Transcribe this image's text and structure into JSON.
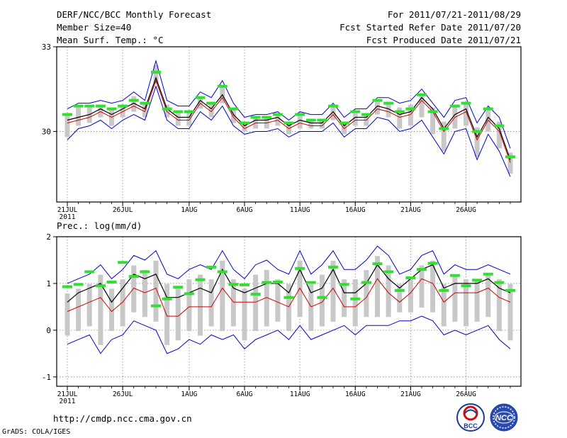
{
  "header": {
    "title": "DERF/NCC/BCC Monthly Forecast",
    "member_size": "Member Size=40",
    "variable": "Mean Surf. Temp.: °C",
    "period": "For 2011/07/21-2011/08/29",
    "refer_date": "Fcst Started Refer Date 2011/07/20",
    "produced_date": "Fcst Produced Date 2011/07/21"
  },
  "footer": {
    "url": "http://cmdp.ncc.cma.gov.cn",
    "grads": "GrADS: COLA/IGES",
    "logo_left_text": "BCC",
    "logo_right_text": "NCC"
  },
  "colors": {
    "mean": "#000000",
    "median": "#cc0000",
    "bounds": "#0000cc",
    "marker": "#33dd33",
    "spread": "#c8c8c8"
  },
  "chart_data": [
    {
      "type": "line",
      "title": "Mean Surf. Temp.: °C",
      "ylabel": "°C",
      "ylim": [
        27.5,
        33
      ],
      "yticks": [
        30,
        33
      ],
      "year_label": "2011",
      "x_tick_labels": [
        "21JUL",
        "26JUL",
        "1AUG",
        "6AUG",
        "11AUG",
        "16AUG",
        "21AUG",
        "26AUG"
      ],
      "x_tick_days": [
        0,
        5,
        11,
        16,
        21,
        26,
        31,
        36
      ],
      "days": 40,
      "series": [
        {
          "name": "upper",
          "values": [
            30.8,
            31.0,
            31.0,
            31.1,
            31.0,
            31.1,
            31.4,
            31.1,
            32.5,
            31.1,
            30.9,
            30.9,
            31.4,
            31.2,
            31.8,
            31.0,
            30.5,
            30.6,
            30.6,
            30.7,
            30.4,
            30.7,
            30.6,
            30.6,
            31.0,
            30.5,
            30.8,
            30.8,
            31.2,
            31.2,
            31.0,
            31.1,
            31.5,
            31.0,
            30.5,
            31.1,
            31.2,
            30.3,
            30.9,
            30.5,
            29.4
          ]
        },
        {
          "name": "mean",
          "values": [
            30.4,
            30.5,
            30.6,
            30.8,
            30.6,
            30.8,
            31.0,
            30.8,
            31.9,
            30.8,
            30.5,
            30.5,
            31.1,
            30.8,
            31.3,
            30.6,
            30.2,
            30.4,
            30.4,
            30.5,
            30.2,
            30.4,
            30.3,
            30.3,
            30.7,
            30.2,
            30.5,
            30.5,
            30.9,
            30.8,
            30.6,
            30.7,
            31.2,
            30.8,
            30.1,
            30.6,
            30.8,
            29.8,
            30.5,
            30.1,
            29.0
          ]
        },
        {
          "name": "median",
          "values": [
            30.3,
            30.4,
            30.5,
            30.7,
            30.5,
            30.7,
            30.9,
            30.7,
            31.8,
            30.7,
            30.4,
            30.4,
            31.0,
            30.7,
            31.2,
            30.5,
            30.1,
            30.3,
            30.3,
            30.4,
            30.1,
            30.3,
            30.2,
            30.2,
            30.6,
            30.1,
            30.4,
            30.4,
            30.8,
            30.7,
            30.5,
            30.6,
            31.1,
            30.7,
            30.0,
            30.5,
            30.7,
            29.7,
            30.4,
            30.0,
            28.9
          ]
        },
        {
          "name": "lower",
          "values": [
            29.7,
            30.1,
            30.2,
            30.4,
            30.1,
            30.4,
            30.6,
            30.4,
            31.6,
            30.4,
            30.1,
            30.1,
            30.7,
            30.4,
            30.9,
            30.2,
            29.9,
            30.0,
            30.0,
            30.1,
            29.8,
            30.0,
            30.0,
            30.0,
            30.3,
            29.8,
            30.1,
            30.1,
            30.5,
            30.4,
            30.0,
            30.1,
            30.4,
            29.8,
            29.2,
            30.0,
            30.1,
            29.0,
            29.9,
            29.3,
            28.4
          ]
        },
        {
          "name": "marker",
          "values": [
            30.6,
            30.9,
            30.9,
            30.9,
            30.8,
            30.9,
            31.1,
            31.0,
            32.1,
            30.8,
            30.7,
            30.7,
            31.2,
            31.0,
            31.6,
            30.8,
            30.3,
            30.5,
            30.5,
            30.6,
            30.3,
            30.6,
            30.4,
            30.4,
            30.9,
            30.3,
            30.7,
            30.6,
            31.1,
            31.0,
            30.7,
            30.8,
            31.3,
            30.7,
            30.1,
            30.9,
            31.0,
            30.0,
            30.8,
            30.2,
            29.1
          ]
        }
      ]
    },
    {
      "type": "line",
      "title": "Prec.: log(mm/d)",
      "ylabel": "log(mm/d)",
      "ylim": [
        -1.2,
        2.0
      ],
      "yticks": [
        -1,
        0,
        1,
        2
      ],
      "year_label": "2011",
      "x_tick_labels": [
        "21JUL",
        "26JUL",
        "1AUG",
        "6AUG",
        "11AUG",
        "16AUG",
        "21AUG",
        "26AUG"
      ],
      "x_tick_days": [
        0,
        5,
        11,
        16,
        21,
        26,
        31,
        36
      ],
      "days": 40,
      "series": [
        {
          "name": "upper",
          "values": [
            1.0,
            1.1,
            1.2,
            1.4,
            1.1,
            1.3,
            1.6,
            1.5,
            1.7,
            1.2,
            1.1,
            1.3,
            1.4,
            1.3,
            1.7,
            1.3,
            1.1,
            1.4,
            1.5,
            1.3,
            1.2,
            1.7,
            1.2,
            1.4,
            1.7,
            1.3,
            1.3,
            1.5,
            1.8,
            1.6,
            1.2,
            1.3,
            1.6,
            1.7,
            1.2,
            1.4,
            1.3,
            1.3,
            1.4,
            1.3,
            1.2
          ]
        },
        {
          "name": "mean",
          "values": [
            0.6,
            0.8,
            0.9,
            1.0,
            0.6,
            0.9,
            1.2,
            1.1,
            1.2,
            0.7,
            0.7,
            0.8,
            0.9,
            0.8,
            1.3,
            0.9,
            0.8,
            0.9,
            1.0,
            1.0,
            0.8,
            1.3,
            0.8,
            0.9,
            1.3,
            0.8,
            0.8,
            1.0,
            1.4,
            1.1,
            0.9,
            1.1,
            1.3,
            1.4,
            0.9,
            1.0,
            1.0,
            1.0,
            1.1,
            0.9,
            0.8
          ]
        },
        {
          "name": "median",
          "values": [
            0.4,
            0.5,
            0.6,
            0.7,
            0.4,
            0.6,
            0.9,
            0.8,
            0.9,
            0.3,
            0.3,
            0.5,
            0.5,
            0.5,
            0.9,
            0.6,
            0.6,
            0.6,
            0.7,
            0.6,
            0.5,
            0.9,
            0.5,
            0.6,
            0.9,
            0.5,
            0.5,
            0.7,
            1.1,
            0.8,
            0.6,
            0.8,
            1.1,
            1.0,
            0.6,
            0.8,
            0.8,
            0.8,
            0.9,
            0.7,
            0.6
          ]
        },
        {
          "name": "lower",
          "values": [
            -0.3,
            -0.2,
            -0.1,
            -0.5,
            -0.2,
            -0.1,
            0.2,
            0.1,
            0.0,
            -0.5,
            -0.4,
            -0.2,
            -0.3,
            -0.1,
            -0.2,
            -0.1,
            -0.4,
            -0.2,
            -0.1,
            0.0,
            -0.2,
            0.1,
            -0.2,
            -0.1,
            0.0,
            0.1,
            -0.1,
            0.1,
            0.1,
            0.1,
            0.2,
            0.2,
            0.3,
            0.2,
            -0.1,
            0.0,
            -0.1,
            0.0,
            0.1,
            -0.2,
            -0.4
          ]
        },
        {
          "name": "marker",
          "values": [
            0.93,
            0.98,
            1.25,
            0.95,
            1.03,
            1.45,
            1.15,
            1.25,
            0.52,
            0.67,
            0.92,
            0.78,
            1.08,
            1.35,
            1.25,
            0.98,
            0.97,
            0.77,
            1.02,
            1.03,
            0.7,
            1.32,
            1.02,
            0.7,
            1.35,
            0.98,
            0.67,
            1.02,
            1.42,
            1.25,
            0.85,
            1.12,
            1.3,
            1.43,
            0.85,
            1.17,
            0.95,
            1.07,
            1.2,
            1.02,
            0.85
          ]
        }
      ]
    }
  ]
}
